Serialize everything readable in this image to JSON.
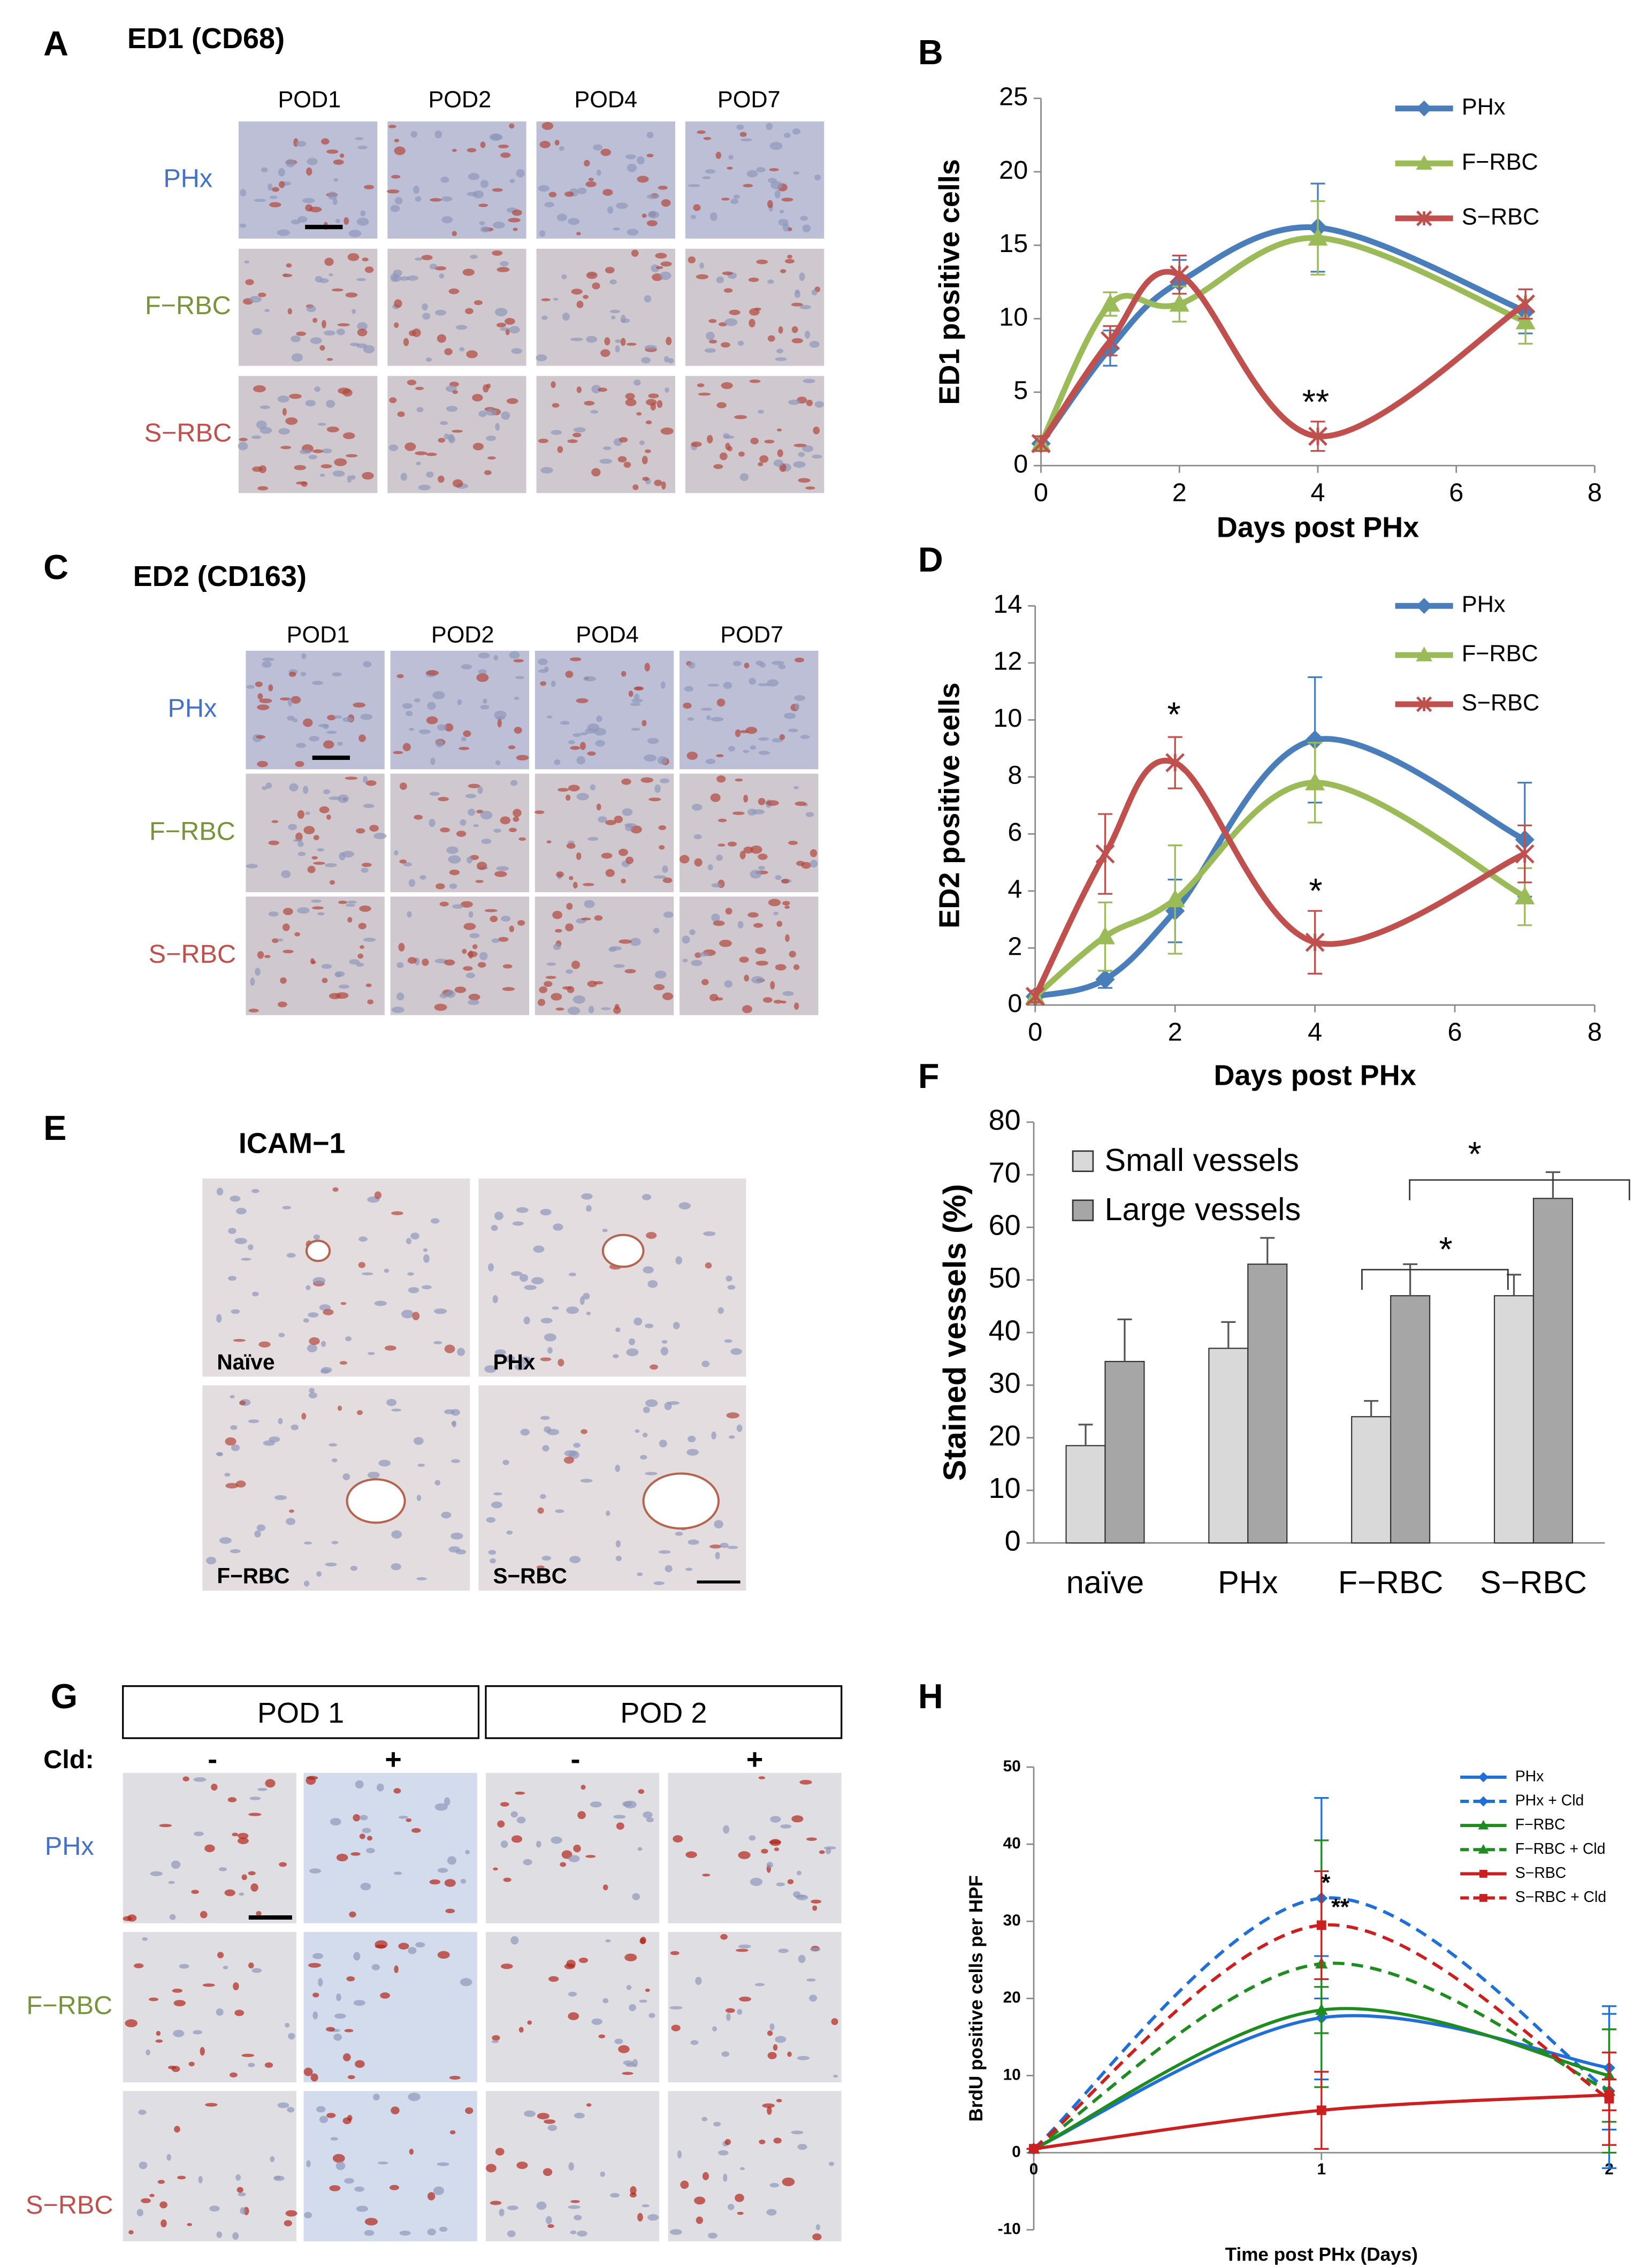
{
  "panels": {
    "A": {
      "label": "A",
      "title": "ED1 (CD68)",
      "columns": [
        "POD1",
        "POD2",
        "POD4",
        "POD7"
      ],
      "rows": [
        "PHx",
        "F−RBC",
        "S−RBC"
      ],
      "row_colors": [
        "#4472c4",
        "#77933c",
        "#c0504d"
      ]
    },
    "C": {
      "label": "C",
      "title": "ED2 (CD163)",
      "columns": [
        "POD1",
        "POD2",
        "POD4",
        "POD7"
      ],
      "rows": [
        "PHx",
        "F−RBC",
        "S−RBC"
      ],
      "row_colors": [
        "#4472c4",
        "#77933c",
        "#c0504d"
      ]
    },
    "E": {
      "label": "E",
      "title": "ICAM−1",
      "images": [
        "Naïve",
        "PHx",
        "F−RBC",
        "S−RBC"
      ]
    },
    "G": {
      "label": "G",
      "groups": [
        "POD 1",
        "POD 2"
      ],
      "row_header": "Cld:",
      "columns": [
        "-",
        "+",
        "-",
        "+"
      ],
      "rows": [
        "PHx",
        "F−RBC",
        "S−RBC"
      ],
      "row_colors": [
        "#4472c4",
        "#77933c",
        "#c0504d"
      ]
    }
  },
  "chart_data": [
    {
      "panel": "B",
      "type": "line",
      "x_label": "Days post PHx",
      "y_label": "ED1 positive cells",
      "x": [
        0,
        1,
        2,
        4,
        7
      ],
      "xlim": [
        0,
        8
      ],
      "xticks": [
        0,
        2,
        4,
        6,
        8
      ],
      "ylim": [
        0,
        25
      ],
      "yticks": [
        0,
        5,
        10,
        15,
        20,
        25
      ],
      "series": [
        {
          "name": "PHx",
          "color": "#4a7ebb",
          "marker": "diamond",
          "values": [
            1.5,
            8,
            12.5,
            16.2,
            10.5
          ],
          "errors": [
            0.5,
            1.2,
            1.5,
            3,
            1.5
          ]
        },
        {
          "name": "F−RBC",
          "color": "#9bbb59",
          "marker": "triangle",
          "values": [
            1.5,
            11,
            11,
            15.5,
            9.8
          ],
          "errors": [
            0.5,
            0.8,
            1.2,
            2.5,
            1.5
          ]
        },
        {
          "name": "S−RBC",
          "color": "#c0504d",
          "marker": "x",
          "values": [
            1.5,
            8.5,
            13,
            2,
            11
          ],
          "errors": [
            0.5,
            1,
            1.3,
            1,
            1
          ]
        }
      ],
      "annotations": [
        "**"
      ]
    },
    {
      "panel": "D",
      "type": "line",
      "x_label": "Days post PHx",
      "y_label": "ED2 positive cells",
      "x": [
        0,
        1,
        2,
        4,
        7
      ],
      "xlim": [
        0,
        8
      ],
      "xticks": [
        0,
        2,
        4,
        6,
        8
      ],
      "ylim": [
        0,
        14
      ],
      "yticks": [
        0,
        2,
        4,
        6,
        8,
        10,
        12,
        14
      ],
      "series": [
        {
          "name": "PHx",
          "color": "#4a7ebb",
          "marker": "diamond",
          "values": [
            0.3,
            0.9,
            3.3,
            9.3,
            5.8
          ],
          "errors": [
            0.2,
            0.3,
            1.1,
            2.2,
            2
          ]
        },
        {
          "name": "F−RBC",
          "color": "#9bbb59",
          "marker": "triangle",
          "values": [
            0.3,
            2.4,
            3.7,
            7.8,
            3.8
          ],
          "errors": [
            0.2,
            1.2,
            1.9,
            1.4,
            1
          ]
        },
        {
          "name": "S−RBC",
          "color": "#c0504d",
          "marker": "x",
          "values": [
            0.3,
            5.3,
            8.5,
            2.2,
            5.3
          ],
          "errors": [
            0.2,
            1.4,
            0.9,
            1.1,
            1
          ]
        }
      ],
      "annotations": [
        "*",
        "*"
      ]
    },
    {
      "panel": "F",
      "type": "bar",
      "y_label": "Stained vessels (%)",
      "categories": [
        "naïve",
        "PHx",
        "F−RBC",
        "S−RBC"
      ],
      "ylim": [
        0,
        80
      ],
      "yticks": [
        0,
        10,
        20,
        30,
        40,
        50,
        60,
        70,
        80
      ],
      "series": [
        {
          "name": "Small vessels",
          "color": "#d9d9d9",
          "values": [
            18.5,
            37,
            24,
            47
          ],
          "errors": [
            4,
            5,
            3,
            4
          ]
        },
        {
          "name": "Large vessels",
          "color": "#a6a6a6",
          "values": [
            34.5,
            53,
            47,
            65.5
          ],
          "errors": [
            8,
            5,
            6,
            5
          ]
        }
      ],
      "annotations": [
        "*",
        "*"
      ]
    },
    {
      "panel": "H",
      "type": "line",
      "x_label": "Time post PHx (Days)",
      "y_label": "BrdU positive cells per HPF",
      "x": [
        0,
        1,
        2
      ],
      "xlim": [
        0,
        2
      ],
      "xticks": [
        0,
        1,
        2
      ],
      "ylim": [
        -10,
        50
      ],
      "yticks": [
        -10,
        0,
        10,
        20,
        30,
        40,
        50
      ],
      "series": [
        {
          "name": "PHx",
          "color": "#1f6fd6",
          "marker": "diamond",
          "dashed": false,
          "values": [
            0.5,
            17.5,
            11
          ],
          "errors": [
            0,
            8,
            8
          ]
        },
        {
          "name": "PHx + Cld",
          "color": "#1f6fd6",
          "marker": "diamond",
          "dashed": true,
          "values": [
            0.5,
            33,
            8
          ],
          "errors": [
            0,
            13,
            10
          ]
        },
        {
          "name": "F−RBC",
          "color": "#1e8c1e",
          "marker": "triangle",
          "dashed": false,
          "values": [
            0.5,
            18.5,
            10
          ],
          "errors": [
            0,
            3,
            6
          ]
        },
        {
          "name": "F−RBC + Cld",
          "color": "#1e8c1e",
          "marker": "triangle",
          "dashed": true,
          "values": [
            0.5,
            24.5,
            8
          ],
          "errors": [
            0,
            16,
            8
          ]
        },
        {
          "name": "S−RBC",
          "color": "#cc1f1f",
          "marker": "square",
          "dashed": false,
          "values": [
            0.5,
            5.5,
            7.5
          ],
          "errors": [
            0,
            5,
            2
          ]
        },
        {
          "name": "S−RBC + Cld",
          "color": "#cc1f1f",
          "marker": "square",
          "dashed": true,
          "values": [
            0.5,
            29.5,
            7
          ],
          "errors": [
            0,
            7,
            6
          ]
        }
      ],
      "annotations": [
        "*",
        "**"
      ]
    }
  ]
}
